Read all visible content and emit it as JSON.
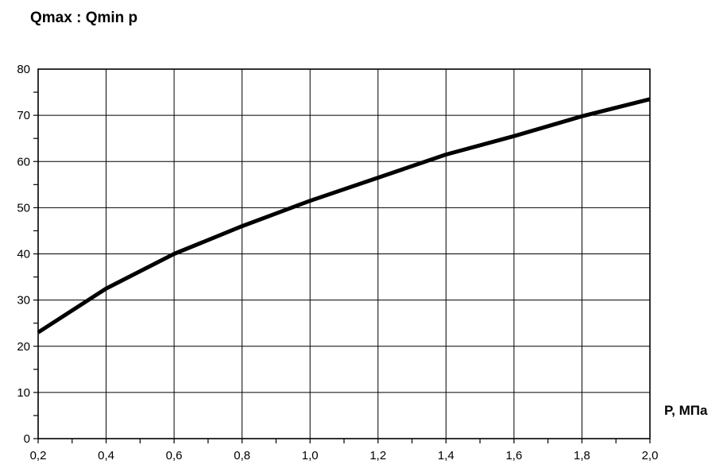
{
  "chart_data": {
    "type": "line",
    "title": "Qmax : Qmin p",
    "xlabel": "P, МПа",
    "ylabel": "",
    "xlim": [
      0.2,
      2.0
    ],
    "ylim": [
      0,
      80
    ],
    "x_ticks": [
      "0,2",
      "0,4",
      "0,6",
      "0,8",
      "1,0",
      "1,2",
      "1,4",
      "1,6",
      "1,8",
      "2,0"
    ],
    "y_ticks": [
      "0",
      "10",
      "20",
      "30",
      "40",
      "50",
      "60",
      "70",
      "80"
    ],
    "grid": true,
    "legend": "none",
    "line_color": "#000000",
    "series": [
      {
        "x": [
          0.2,
          0.4,
          0.6,
          0.8,
          1.0,
          1.2,
          1.4,
          1.6,
          1.8,
          2.0
        ],
        "values": [
          23,
          32.5,
          40,
          46,
          51.5,
          56.5,
          61.5,
          65.5,
          69.8,
          73.5
        ]
      }
    ]
  }
}
